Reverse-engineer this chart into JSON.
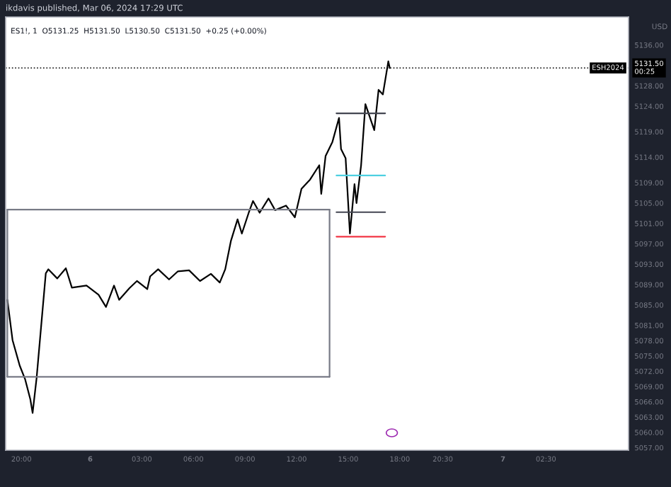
{
  "chart_data": {
    "type": "line",
    "title": "ikdavis published, Mar 06, 2024 17:29 UTC",
    "subtitle": "ES1!, 1  O5131.25  H5131.50  L5130.50  C5131.50  +0.25 (+0.00%)",
    "ylabel": "USD",
    "xlim": [
      "2024-03-05T19:05",
      "2024-03-07T07:18"
    ],
    "ylim": [
      5056.5,
      5141.5
    ],
    "xticks": [
      {
        "value": "2024-03-05T20:00",
        "label": "20:00"
      },
      {
        "value": "2024-03-06T00:00",
        "label": "6"
      },
      {
        "value": "2024-03-06T03:00",
        "label": "03:00"
      },
      {
        "value": "2024-03-06T06:00",
        "label": "06:00"
      },
      {
        "value": "2024-03-06T09:00",
        "label": "09:00"
      },
      {
        "value": "2024-03-06T12:00",
        "label": "12:00"
      },
      {
        "value": "2024-03-06T15:00",
        "label": "15:00"
      },
      {
        "value": "2024-03-06T18:00",
        "label": "18:00"
      },
      {
        "value": "2024-03-06T20:30",
        "label": "20:30"
      },
      {
        "value": "2024-03-07T00:00",
        "label": "7"
      },
      {
        "value": "2024-03-07T02:30",
        "label": "02:30"
      }
    ],
    "yticks": [
      {
        "value": 5136,
        "label": "5136.00"
      },
      {
        "value": 5128,
        "label": "5128.00"
      },
      {
        "value": 5124,
        "label": "5124.00"
      },
      {
        "value": 5119,
        "label": "5119.00"
      },
      {
        "value": 5114,
        "label": "5114.00"
      },
      {
        "value": 5109,
        "label": "5109.00"
      },
      {
        "value": 5105,
        "label": "5105.00"
      },
      {
        "value": 5101,
        "label": "5101.00"
      },
      {
        "value": 5097,
        "label": "5097.00"
      },
      {
        "value": 5093,
        "label": "5093.00"
      },
      {
        "value": 5089,
        "label": "5089.00"
      },
      {
        "value": 5085,
        "label": "5085.00"
      },
      {
        "value": 5081,
        "label": "5081.00"
      },
      {
        "value": 5078,
        "label": "5078.00"
      },
      {
        "value": 5075,
        "label": "5075.00"
      },
      {
        "value": 5072,
        "label": "5072.00"
      },
      {
        "value": 5069,
        "label": "5069.00"
      },
      {
        "value": 5066,
        "label": "5066.00"
      },
      {
        "value": 5063,
        "label": "5063.00"
      },
      {
        "value": 5060,
        "label": "5060.00"
      },
      {
        "value": 5057,
        "label": "5057.00"
      }
    ],
    "grid": false,
    "legend": false,
    "marker": "none",
    "line_style": "solid",
    "series": [
      {
        "color": "#000000",
        "x": [
          "2024-03-05T19:11",
          "2024-03-05T19:29",
          "2024-03-05T19:54",
          "2024-03-05T20:13",
          "2024-03-05T20:31",
          "2024-03-05T20:39",
          "2024-03-05T20:53",
          "2024-03-05T21:25",
          "2024-03-05T21:34",
          "2024-03-05T22:05",
          "2024-03-05T22:35",
          "2024-03-05T22:56",
          "2024-03-05T23:47",
          "2024-03-06T00:29",
          "2024-03-06T00:55",
          "2024-03-06T01:23",
          "2024-03-06T01:41",
          "2024-03-06T02:17",
          "2024-03-06T02:43",
          "2024-03-06T03:19",
          "2024-03-06T03:29",
          "2024-03-06T03:57",
          "2024-03-06T04:35",
          "2024-03-06T05:06",
          "2024-03-06T05:45",
          "2024-03-06T06:23",
          "2024-03-06T07:01",
          "2024-03-06T07:32",
          "2024-03-06T07:51",
          "2024-03-06T08:11",
          "2024-03-06T08:34",
          "2024-03-06T08:49",
          "2024-03-06T09:13",
          "2024-03-06T09:28",
          "2024-03-06T09:51",
          "2024-03-06T10:22",
          "2024-03-06T10:45",
          "2024-03-06T11:23",
          "2024-03-06T11:54",
          "2024-03-06T12:17",
          "2024-03-06T12:47",
          "2024-03-06T13:19",
          "2024-03-06T13:26",
          "2024-03-06T13:41",
          "2024-03-06T14:05",
          "2024-03-06T14:28",
          "2024-03-06T14:35",
          "2024-03-06T14:51",
          "2024-03-06T15:06",
          "2024-03-06T15:22",
          "2024-03-06T15:29",
          "2024-03-06T15:45",
          "2024-03-06T16:00",
          "2024-03-06T16:31",
          "2024-03-06T16:46",
          "2024-03-06T17:01",
          "2024-03-06T17:20",
          "2024-03-06T17:25"
        ],
        "values": [
          5086.0,
          5078.1,
          5073.1,
          5070.4,
          5066.5,
          5063.8,
          5070.7,
          5091.2,
          5092.0,
          5090.2,
          5092.2,
          5088.4,
          5088.8,
          5087.0,
          5084.6,
          5088.8,
          5086.0,
          5088.3,
          5089.7,
          5088.1,
          5090.6,
          5092.0,
          5090.0,
          5091.6,
          5091.8,
          5089.7,
          5091.1,
          5089.4,
          5092.0,
          5097.6,
          5101.8,
          5099.0,
          5103.1,
          5105.4,
          5103.1,
          5105.9,
          5103.6,
          5104.5,
          5102.2,
          5107.8,
          5109.6,
          5112.4,
          5106.8,
          5114.2,
          5117.0,
          5121.7,
          5115.6,
          5113.8,
          5099.0,
          5108.7,
          5105.0,
          5112.4,
          5124.4,
          5119.3,
          5127.2,
          5126.3,
          5132.8,
          5131.5
        ]
      },
      {
        "color": "#787b86",
        "x": [
          "2024-03-05T19:11",
          "2024-03-06T13:55"
        ],
        "values": [
          5103.7,
          5103.7
        ]
      },
      {
        "color": "#787b86",
        "x": [
          "2024-03-05T19:11",
          "2024-03-06T13:55"
        ],
        "values": [
          5070.9,
          5070.9
        ]
      },
      {
        "color": "#787b86",
        "x": [
          "2024-03-05T19:11",
          "2024-03-05T19:11"
        ],
        "values": [
          5070.9,
          5103.7
        ]
      },
      {
        "color": "#787b86",
        "x": [
          "2024-03-06T13:55",
          "2024-03-06T13:55"
        ],
        "values": [
          5070.9,
          5103.7
        ]
      },
      {
        "color": "#434651",
        "x": [
          "2024-03-06T14:19",
          "2024-03-06T17:09"
        ],
        "values": [
          5122.6,
          5122.6
        ]
      },
      {
        "color": "#4dd0e1",
        "x": [
          "2024-03-06T14:19",
          "2024-03-06T17:09"
        ],
        "values": [
          5110.4,
          5110.4
        ]
      },
      {
        "color": "#434651",
        "x": [
          "2024-03-06T14:19",
          "2024-03-06T17:09"
        ],
        "values": [
          5103.2,
          5103.2
        ]
      },
      {
        "color": "#f23645",
        "x": [
          "2024-03-06T14:19",
          "2024-03-06T17:09"
        ],
        "values": [
          5098.4,
          5098.4
        ]
      }
    ],
    "ref_lines": [
      {
        "axis": "y",
        "value": 5131.5,
        "label": "ESH2024",
        "color": "#000000",
        "line_style": "dotted"
      }
    ],
    "annotations": [
      {
        "text": "5131.50\n00:25",
        "y": 5131.5
      }
    ]
  }
}
